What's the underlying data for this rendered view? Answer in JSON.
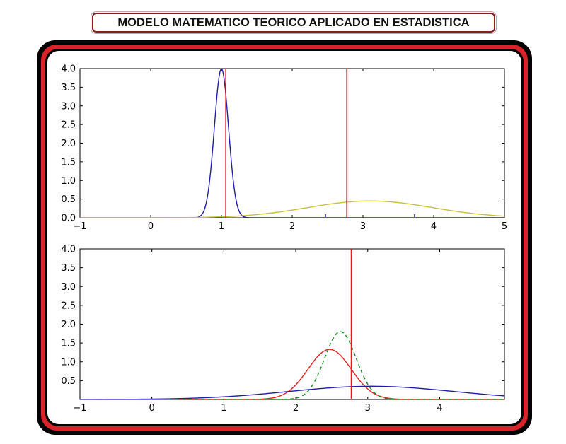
{
  "title": "MODELO MATEMATICO TEORICO APLICADO EN ESTADISTICA",
  "colors": {
    "frame_red": "#d8232a",
    "blue": "#1f1fa8",
    "yellow": "#c8c03a",
    "red": "#e02020",
    "green": "#1a8a1a"
  },
  "chart_data": [
    {
      "type": "line",
      "xlim": [
        -1,
        5
      ],
      "ylim": [
        0,
        4
      ],
      "xticks": [
        "−1",
        "0",
        "1",
        "2",
        "3",
        "4",
        "5"
      ],
      "yticks": [
        "0.0",
        "0.5",
        "1.0",
        "1.5",
        "2.0",
        "2.5",
        "3.0",
        "3.5",
        "4.0"
      ],
      "series": [
        {
          "color": "blue",
          "style": "solid",
          "kind": "normal",
          "mean": 1.0,
          "sd": 0.1,
          "peak": 4.0
        },
        {
          "color": "yellow",
          "style": "solid",
          "kind": "normal",
          "mean": 3.1,
          "sd": 0.88,
          "peak": 0.45
        }
      ],
      "vlines": [
        1.06,
        2.77
      ],
      "markers": [
        2.47,
        3.73
      ]
    },
    {
      "type": "line",
      "xlim": [
        -1,
        4.9
      ],
      "ylim": [
        0,
        4
      ],
      "xticks": [
        "−1",
        "0",
        "1",
        "2",
        "3",
        "4"
      ],
      "yticks": [
        "0.5",
        "1.0",
        "1.5",
        "2.0",
        "2.5",
        "3.0",
        "3.5",
        "4.0"
      ],
      "series": [
        {
          "color": "red",
          "style": "solid",
          "kind": "normal",
          "mean": 2.47,
          "sd": 0.3,
          "peak": 1.33
        },
        {
          "color": "green",
          "style": "dashed",
          "kind": "normal",
          "mean": 2.62,
          "sd": 0.22,
          "peak": 1.8
        },
        {
          "color": "blue",
          "style": "solid",
          "kind": "normal",
          "mean": 3.05,
          "sd": 1.15,
          "peak": 0.35
        }
      ],
      "vlines": [
        2.77
      ]
    }
  ]
}
